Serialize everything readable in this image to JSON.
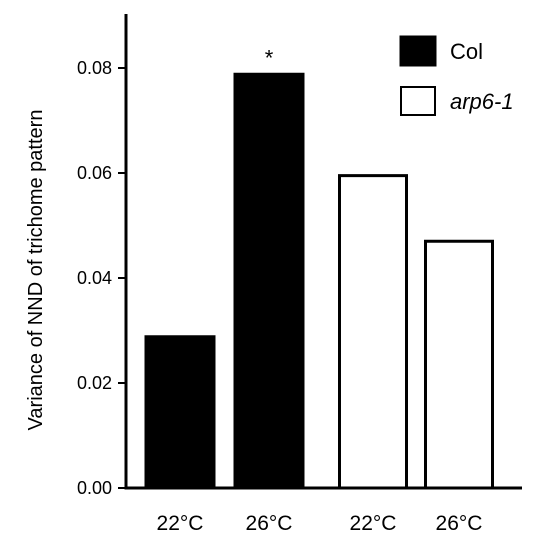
{
  "chart_data": {
    "type": "bar",
    "title": "",
    "xlabel": "",
    "ylabel": "Variance of NND of trichome pattern",
    "ylim": [
      0,
      0.09
    ],
    "yticks": [
      "0.00",
      "0.02",
      "0.04",
      "0.06",
      "0.08"
    ],
    "ytick_values": [
      0,
      0.02,
      0.04,
      0.06,
      0.08
    ],
    "grid": false,
    "legend_position": "top-right",
    "categories": [
      "22°C",
      "26°C",
      "22°C",
      "26°C"
    ],
    "bars": [
      {
        "category": "22°C",
        "series": "Col",
        "value": 0.029,
        "fill": "#000000",
        "annotation": ""
      },
      {
        "category": "26°C",
        "series": "Col",
        "value": 0.079,
        "fill": "#000000",
        "annotation": "*"
      },
      {
        "category": "22°C",
        "series": "arp6-1",
        "value": 0.0595,
        "fill": "#ffffff",
        "annotation": ""
      },
      {
        "category": "26°C",
        "series": "arp6-1",
        "value": 0.047,
        "fill": "#ffffff",
        "annotation": ""
      }
    ],
    "legend": [
      {
        "name": "Col",
        "fill": "#000000",
        "italic": false
      },
      {
        "name": "arp6-1",
        "fill": "#ffffff",
        "italic": true
      }
    ]
  }
}
